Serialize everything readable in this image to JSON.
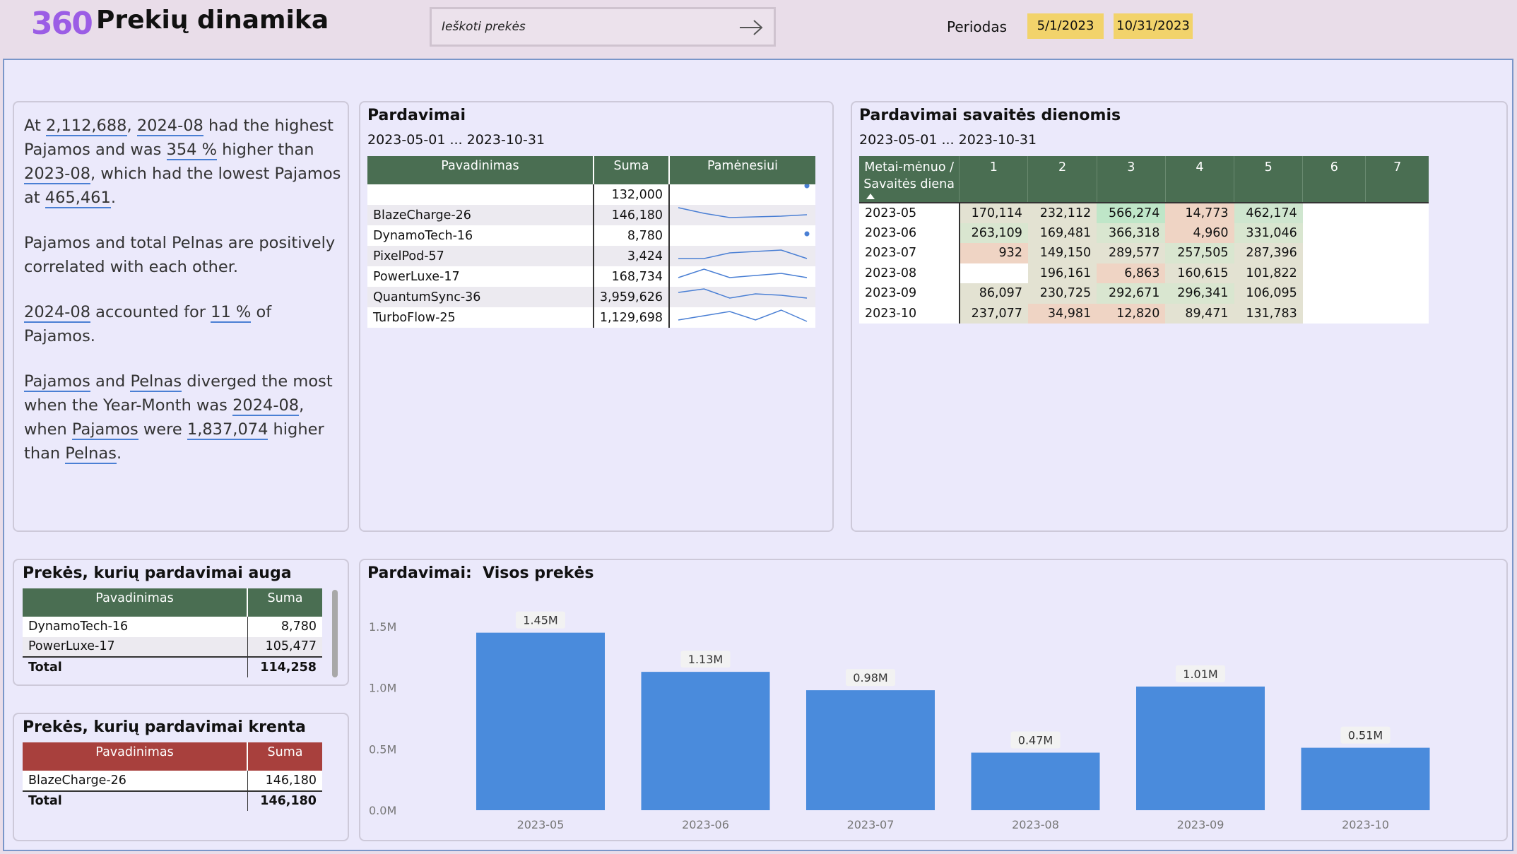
{
  "header": {
    "logo": "360",
    "title": "Prekių dinamika",
    "search_placeholder": "Ieškoti prekės",
    "period_label": "Periodas",
    "date_from": "5/1/2023",
    "date_to": "10/31/2023"
  },
  "narrative": {
    "p1": [
      "At ",
      "2,112,688",
      ", ",
      "2024-08",
      " had the highest Pajamos and was ",
      "354 %",
      " higher than ",
      "2023-08",
      ", which had the lowest Pajamos at ",
      "465,461",
      "."
    ],
    "p2": "Pajamos and total Pelnas are positively correlated with each other.",
    "p3": [
      "2024-08",
      " accounted for ",
      "11 %",
      " of Pajamos."
    ],
    "p4": [
      "Pajamos",
      " and ",
      "Pelnas",
      " diverged the most when the Year-Month was ",
      "2024-08",
      ", when ",
      "Pajamos",
      " were ",
      "1,837,074",
      " higher than ",
      "Pelnas",
      "."
    ]
  },
  "sales": {
    "title": "Pardavimai",
    "subtitle": "2023-05-01 ... 2023-10-31",
    "columns": [
      "Pavadinimas",
      "Suma",
      "Pamėnesiui"
    ],
    "rows": [
      {
        "name": "",
        "sum": "132,000",
        "spark": [
          null,
          null,
          null,
          null,
          null,
          1
        ]
      },
      {
        "name": "BlazeCharge-26",
        "sum": "146,180",
        "spark": [
          0.9,
          0.5,
          0.2,
          0.25,
          0.3,
          0.4
        ]
      },
      {
        "name": "DynamoTech-16",
        "sum": "8,780",
        "spark": [
          null,
          null,
          null,
          null,
          null,
          0.5
        ]
      },
      {
        "name": "PixelPod-57",
        "sum": "3,424",
        "spark": [
          0.2,
          0.2,
          0.6,
          0.7,
          0.8,
          0.2
        ]
      },
      {
        "name": "PowerLuxe-17",
        "sum": "168,734",
        "spark": [
          0.3,
          0.9,
          0.3,
          0.45,
          0.6,
          0.3
        ]
      },
      {
        "name": "QuantumSync-36",
        "sum": "3,959,626",
        "spark": [
          0.7,
          0.95,
          0.3,
          0.6,
          0.5,
          0.3
        ]
      },
      {
        "name": "TurboFlow-25",
        "sum": "1,129,698",
        "spark": [
          0.2,
          0.5,
          0.8,
          0.2,
          0.9,
          0.1
        ]
      }
    ]
  },
  "weekday": {
    "title": "Pardavimai savaitės dienomis",
    "subtitle": "2023-05-01 ... 2023-10-31",
    "corner_header": "Metai-mėnuo / Savaitės diena",
    "day_headers": [
      "1",
      "2",
      "3",
      "4",
      "5",
      "6",
      "7"
    ],
    "rows": [
      {
        "month": "2023-05",
        "cells": [
          "170,114",
          "232,112",
          "566,274",
          "14,773",
          "462,174",
          "",
          ""
        ]
      },
      {
        "month": "2023-06",
        "cells": [
          "263,109",
          "169,481",
          "366,318",
          "4,960",
          "331,046",
          "",
          ""
        ]
      },
      {
        "month": "2023-07",
        "cells": [
          "932",
          "149,150",
          "289,577",
          "257,505",
          "287,396",
          "",
          ""
        ]
      },
      {
        "month": "2023-08",
        "cells": [
          "",
          "196,161",
          "6,863",
          "160,615",
          "101,822",
          "",
          ""
        ]
      },
      {
        "month": "2023-09",
        "cells": [
          "86,097",
          "230,725",
          "292,671",
          "296,341",
          "106,095",
          "",
          ""
        ]
      },
      {
        "month": "2023-10",
        "cells": [
          "237,077",
          "34,981",
          "12,820",
          "89,471",
          "131,783",
          "",
          ""
        ]
      }
    ],
    "colors": {
      "green": "#cfe6cf",
      "light_green": "#d9e6d0",
      "neutral": "#e3e2d2",
      "peach": "#efd4c4",
      "strong_green": "#bfe6c8"
    }
  },
  "growing": {
    "title": "Prekės, kurių pardavimai auga",
    "columns": [
      "Pavadinimas",
      "Suma"
    ],
    "rows": [
      {
        "name": "DynamoTech-16",
        "sum": "8,780"
      },
      {
        "name": "PowerLuxe-17",
        "sum": "105,477"
      }
    ],
    "total_label": "Total",
    "total": "114,258",
    "header_color": "#4a6e52"
  },
  "falling": {
    "title": "Prekės, kurių pardavimai krenta",
    "columns": [
      "Pavadinimas",
      "Suma"
    ],
    "rows": [
      {
        "name": "BlazeCharge-26",
        "sum": "146,180"
      }
    ],
    "total_label": "Total",
    "total": "146,180",
    "header_color": "#a8403d"
  },
  "chart_data": {
    "type": "bar",
    "title": "Pardavimai:  Visos prekės",
    "categories": [
      "2023-05",
      "2023-06",
      "2023-07",
      "2023-08",
      "2023-09",
      "2023-10"
    ],
    "values": [
      1450000,
      1130000,
      980000,
      470000,
      1010000,
      510000
    ],
    "data_labels": [
      "1.45M",
      "1.13M",
      "0.98M",
      "0.47M",
      "1.01M",
      "0.51M"
    ],
    "y_ticks": [
      "0.0M",
      "0.5M",
      "1.0M",
      "1.5M"
    ],
    "ylim": [
      0,
      1500000
    ],
    "bar_color": "#4a8bdc"
  }
}
